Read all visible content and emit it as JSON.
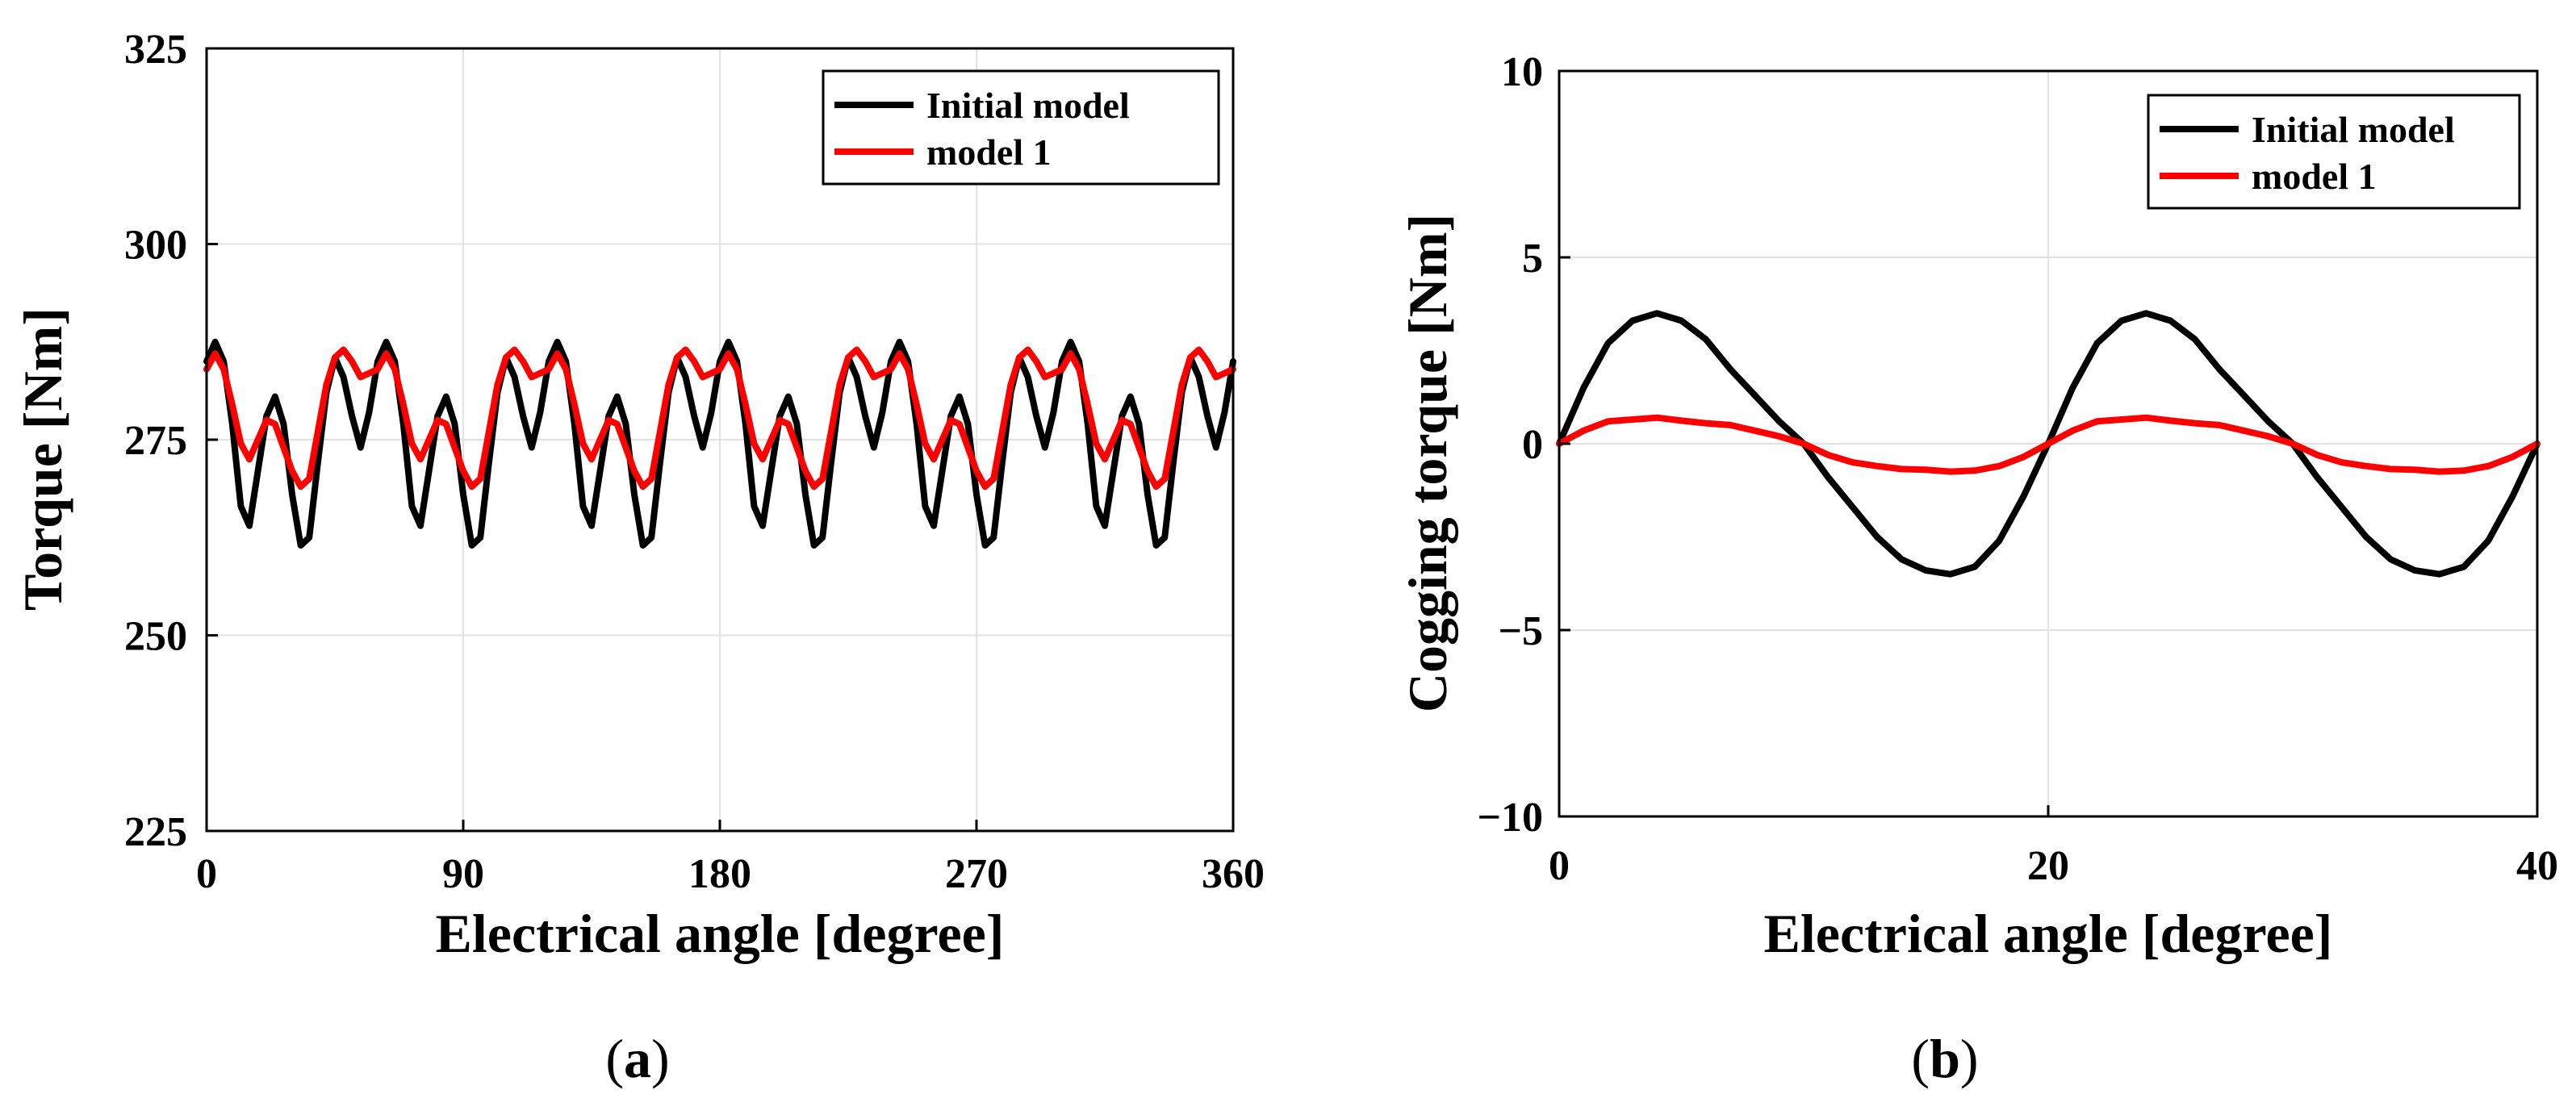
{
  "chart_data": [
    {
      "type": "line",
      "caption_letter": "a",
      "xlabel": "Electrical angle [degree]",
      "ylabel": "Torque [Nm]",
      "xlim": [
        0,
        360
      ],
      "ylim": [
        225,
        325
      ],
      "xticks": [
        "0",
        "90",
        "180",
        "270",
        "360"
      ],
      "yticks": [
        "225",
        "250",
        "275",
        "300",
        "325"
      ],
      "legend_position": "top-right",
      "grid": true,
      "series": [
        {
          "name": "Initial model",
          "color": "#000000",
          "x": [
            0,
            3,
            6,
            9,
            12,
            15,
            18,
            21,
            24,
            27,
            30,
            33,
            36,
            39,
            42,
            45,
            48,
            51,
            54,
            57,
            60,
            63,
            66,
            69,
            72,
            75,
            78,
            81,
            84,
            87,
            90,
            93,
            96,
            99,
            102,
            105,
            108,
            111,
            114,
            117,
            120,
            123,
            126,
            129,
            132,
            135,
            138,
            141,
            144,
            147,
            150,
            153,
            156,
            159,
            162,
            165,
            168,
            171,
            174,
            177,
            180,
            183,
            186,
            189,
            192,
            195,
            198,
            201,
            204,
            207,
            210,
            213,
            216,
            219,
            222,
            225,
            228,
            231,
            234,
            237,
            240,
            243,
            246,
            249,
            252,
            255,
            258,
            261,
            264,
            267,
            270,
            273,
            276,
            279,
            282,
            285,
            288,
            291,
            294,
            297,
            300,
            303,
            306,
            309,
            312,
            315,
            318,
            321,
            324,
            327,
            330,
            333,
            336,
            339,
            342,
            345,
            348,
            351,
            354,
            357,
            360
          ],
          "y": [
            285,
            287.5,
            285,
            277,
            266.5,
            264,
            271,
            278,
            280.5,
            277,
            268,
            261.5,
            262.5,
            272,
            281,
            285.5,
            283,
            278,
            274,
            278.5,
            285,
            287.5,
            285,
            277,
            266.5,
            264,
            271,
            278,
            280.5,
            277,
            268,
            261.5,
            262.5,
            272,
            281,
            285.5,
            283,
            278,
            274,
            278.5,
            285,
            287.5,
            285,
            277,
            266.5,
            264,
            271,
            278,
            280.5,
            277,
            268,
            261.5,
            262.5,
            272,
            281,
            285.5,
            283,
            278,
            274,
            278.5,
            285,
            287.5,
            285,
            277,
            266.5,
            264,
            271,
            278,
            280.5,
            277,
            268,
            261.5,
            262.5,
            272,
            281,
            285.5,
            283,
            278,
            274,
            278.5,
            285,
            287.5,
            285,
            277,
            266.5,
            264,
            271,
            278,
            280.5,
            277,
            268,
            261.5,
            262.5,
            272,
            281,
            285.5,
            283,
            278,
            274,
            278.5,
            285,
            287.5,
            285,
            277,
            266.5,
            264,
            271,
            278,
            280.5,
            277,
            268,
            261.5,
            262.5,
            272,
            281,
            285.5,
            283,
            278,
            274,
            278.5,
            285
          ]
        },
        {
          "name": "model 1",
          "color": "#ff0000",
          "x": [
            0,
            3,
            6,
            9,
            12,
            15,
            18,
            21,
            24,
            27,
            30,
            33,
            36,
            39,
            42,
            45,
            48,
            51,
            54,
            57,
            60,
            63,
            66,
            69,
            72,
            75,
            78,
            81,
            84,
            87,
            90,
            93,
            96,
            99,
            102,
            105,
            108,
            111,
            114,
            117,
            120,
            123,
            126,
            129,
            132,
            135,
            138,
            141,
            144,
            147,
            150,
            153,
            156,
            159,
            162,
            165,
            168,
            171,
            174,
            177,
            180,
            183,
            186,
            189,
            192,
            195,
            198,
            201,
            204,
            207,
            210,
            213,
            216,
            219,
            222,
            225,
            228,
            231,
            234,
            237,
            240,
            243,
            246,
            249,
            252,
            255,
            258,
            261,
            264,
            267,
            270,
            273,
            276,
            279,
            282,
            285,
            288,
            291,
            294,
            297,
            300,
            303,
            306,
            309,
            312,
            315,
            318,
            321,
            324,
            327,
            330,
            333,
            336,
            339,
            342,
            345,
            348,
            351,
            354,
            357,
            360
          ],
          "y": [
            284,
            286,
            284,
            279.5,
            274.5,
            272.5,
            275,
            277.5,
            277,
            274,
            271,
            269,
            270,
            276,
            282,
            285.5,
            286.5,
            285,
            283,
            283.5,
            284,
            286,
            284,
            279.5,
            274.5,
            272.5,
            275,
            277.5,
            277,
            274,
            271,
            269,
            270,
            276,
            282,
            285.5,
            286.5,
            285,
            283,
            283.5,
            284,
            286,
            284,
            279.5,
            274.5,
            272.5,
            275,
            277.5,
            277,
            274,
            271,
            269,
            270,
            276,
            282,
            285.5,
            286.5,
            285,
            283,
            283.5,
            284,
            286,
            284,
            279.5,
            274.5,
            272.5,
            275,
            277.5,
            277,
            274,
            271,
            269,
            270,
            276,
            282,
            285.5,
            286.5,
            285,
            283,
            283.5,
            284,
            286,
            284,
            279.5,
            274.5,
            272.5,
            275,
            277.5,
            277,
            274,
            271,
            269,
            270,
            276,
            282,
            285.5,
            286.5,
            285,
            283,
            283.5,
            284,
            286,
            284,
            279.5,
            274.5,
            272.5,
            275,
            277.5,
            277,
            274,
            271,
            269,
            270,
            276,
            282,
            285.5,
            286.5,
            285,
            283,
            283.5,
            284
          ]
        }
      ]
    },
    {
      "type": "line",
      "caption_letter": "b",
      "xlabel": "Electrical angle [degree]",
      "ylabel": "Cogging torque [Nm]",
      "xlim": [
        0,
        40
      ],
      "ylim": [
        -10,
        10
      ],
      "xticks": [
        "0",
        "20",
        "40"
      ],
      "yticks": [
        "−10",
        "−5",
        "0",
        "5",
        "10"
      ],
      "legend_position": "top-right",
      "grid": true,
      "series": [
        {
          "name": "Initial model",
          "color": "#000000",
          "x": [
            0,
            1,
            2,
            3,
            4,
            5,
            6,
            7,
            8,
            9,
            10,
            11,
            12,
            13,
            14,
            15,
            16,
            17,
            18,
            19,
            20,
            21,
            22,
            23,
            24,
            25,
            26,
            27,
            28,
            29,
            30,
            31,
            32,
            33,
            34,
            35,
            36,
            37,
            38,
            39,
            40
          ],
          "y": [
            0,
            1.5,
            2.7,
            3.3,
            3.5,
            3.3,
            2.8,
            2.0,
            1.3,
            0.6,
            0,
            -0.9,
            -1.7,
            -2.5,
            -3.1,
            -3.4,
            -3.5,
            -3.3,
            -2.6,
            -1.4,
            0,
            1.5,
            2.7,
            3.3,
            3.5,
            3.3,
            2.8,
            2.0,
            1.3,
            0.6,
            0,
            -0.9,
            -1.7,
            -2.5,
            -3.1,
            -3.4,
            -3.5,
            -3.3,
            -2.6,
            -1.4,
            0
          ]
        },
        {
          "name": "model 1",
          "color": "#ff0000",
          "x": [
            0,
            1,
            2,
            3,
            4,
            5,
            6,
            7,
            8,
            9,
            10,
            11,
            12,
            13,
            14,
            15,
            16,
            17,
            18,
            19,
            20,
            21,
            22,
            23,
            24,
            25,
            26,
            27,
            28,
            29,
            30,
            31,
            32,
            33,
            34,
            35,
            36,
            37,
            38,
            39,
            40
          ],
          "y": [
            0,
            0.35,
            0.6,
            0.65,
            0.7,
            0.62,
            0.55,
            0.5,
            0.35,
            0.2,
            0,
            -0.3,
            -0.5,
            -0.6,
            -0.68,
            -0.7,
            -0.75,
            -0.72,
            -0.6,
            -0.35,
            0,
            0.35,
            0.6,
            0.65,
            0.7,
            0.62,
            0.55,
            0.5,
            0.35,
            0.2,
            0,
            -0.3,
            -0.5,
            -0.6,
            -0.68,
            -0.7,
            -0.75,
            -0.72,
            -0.6,
            -0.35,
            0
          ]
        }
      ]
    }
  ]
}
